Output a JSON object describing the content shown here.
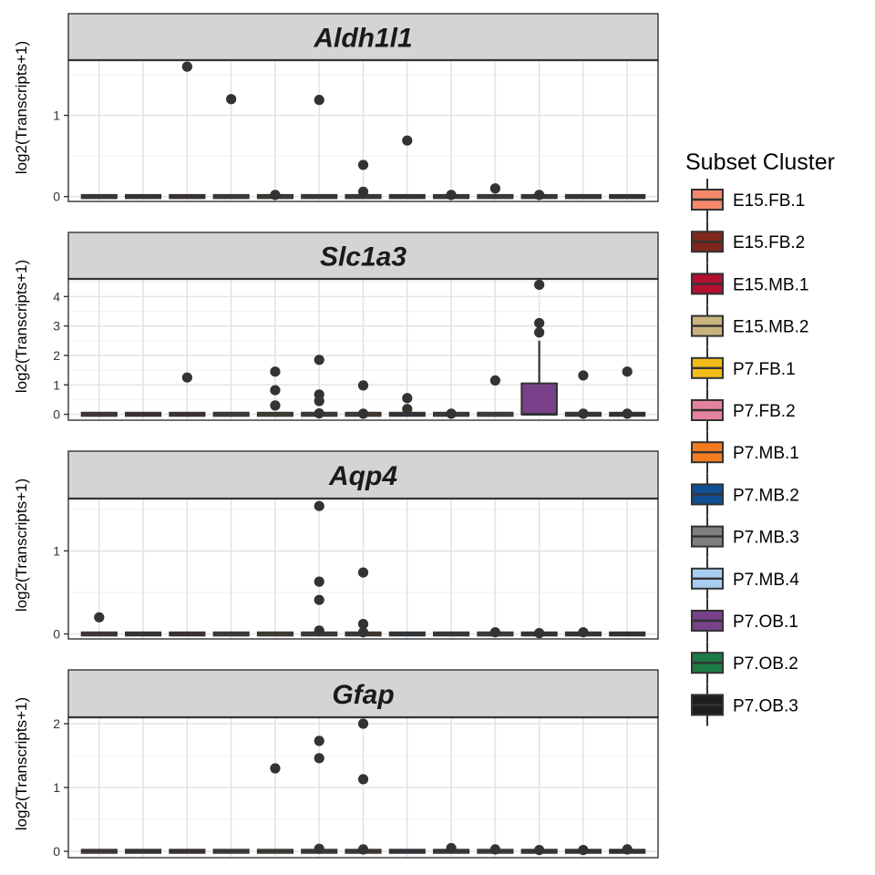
{
  "chart_data": {
    "type": "box",
    "ylabel": "log2(Transcripts+1)",
    "legend": {
      "title": "Subset Cluster",
      "placement": "right",
      "entries": [
        {
          "name": "E15.FB.1",
          "color": "#F4896B"
        },
        {
          "name": "E15.FB.2",
          "color": "#7F271C"
        },
        {
          "name": "E15.MB.1",
          "color": "#B40F32"
        },
        {
          "name": "E15.MB.2",
          "color": "#C9B37F"
        },
        {
          "name": "P7.FB.1",
          "color": "#F2BC1B"
        },
        {
          "name": "P7.FB.2",
          "color": "#E4839E"
        },
        {
          "name": "P7.MB.1",
          "color": "#F47B20"
        },
        {
          "name": "P7.MB.2",
          "color": "#0E4F96"
        },
        {
          "name": "P7.MB.3",
          "color": "#7E7E7E"
        },
        {
          "name": "P7.MB.4",
          "color": "#A9CDF0"
        },
        {
          "name": "P7.OB.1",
          "color": "#79418A"
        },
        {
          "name": "P7.OB.2",
          "color": "#1C7A45"
        },
        {
          "name": "P7.OB.3",
          "color": "#1E1E1E"
        }
      ]
    },
    "grid": true,
    "panels": [
      {
        "gene": "Aldh1l1",
        "ylim": [
          -0.06,
          1.68
        ],
        "yticks": [
          0,
          1
        ],
        "boxes": [
          {
            "cluster": "E15.FB.1",
            "q1": 0,
            "median": 0,
            "q3": 0,
            "outliers": []
          },
          {
            "cluster": "E15.FB.2",
            "q1": 0,
            "median": 0,
            "q3": 0,
            "outliers": []
          },
          {
            "cluster": "E15.MB.1",
            "q1": 0,
            "median": 0,
            "q3": 0,
            "outliers": [
              1.6
            ]
          },
          {
            "cluster": "E15.MB.2",
            "q1": 0,
            "median": 0,
            "q3": 0,
            "outliers": [
              1.2
            ]
          },
          {
            "cluster": "P7.FB.1",
            "q1": 0,
            "median": 0,
            "q3": 0,
            "outliers": [
              0.02
            ]
          },
          {
            "cluster": "P7.FB.2",
            "q1": 0,
            "median": 0,
            "q3": 0,
            "outliers": [
              1.19
            ]
          },
          {
            "cluster": "P7.MB.1",
            "q1": 0,
            "median": 0,
            "q3": 0,
            "outliers": [
              0.39,
              0.06
            ]
          },
          {
            "cluster": "P7.MB.2",
            "q1": 0,
            "median": 0,
            "q3": 0,
            "outliers": [
              0.69
            ]
          },
          {
            "cluster": "P7.MB.3",
            "q1": 0,
            "median": 0,
            "q3": 0,
            "outliers": [
              0.02
            ]
          },
          {
            "cluster": "P7.MB.4",
            "q1": 0,
            "median": 0,
            "q3": 0,
            "outliers": [
              0.1
            ]
          },
          {
            "cluster": "P7.OB.1",
            "q1": 0,
            "median": 0,
            "q3": 0,
            "outliers": [
              0.02
            ]
          },
          {
            "cluster": "P7.OB.2",
            "q1": 0,
            "median": 0,
            "q3": 0,
            "outliers": []
          },
          {
            "cluster": "P7.OB.3",
            "q1": 0,
            "median": 0,
            "q3": 0,
            "outliers": []
          }
        ]
      },
      {
        "gene": "Slc1a3",
        "ylim": [
          -0.2,
          4.6
        ],
        "yticks": [
          0,
          1,
          2,
          3,
          4
        ],
        "boxes": [
          {
            "cluster": "E15.FB.1",
            "q1": 0,
            "median": 0,
            "q3": 0,
            "outliers": []
          },
          {
            "cluster": "E15.FB.2",
            "q1": 0,
            "median": 0,
            "q3": 0,
            "outliers": []
          },
          {
            "cluster": "E15.MB.1",
            "q1": 0,
            "median": 0,
            "q3": 0,
            "outliers": [
              1.25
            ]
          },
          {
            "cluster": "E15.MB.2",
            "q1": 0,
            "median": 0,
            "q3": 0,
            "outliers": []
          },
          {
            "cluster": "P7.FB.1",
            "q1": 0,
            "median": 0,
            "q3": 0,
            "outliers": [
              1.45,
              0.82,
              0.3
            ]
          },
          {
            "cluster": "P7.FB.2",
            "q1": 0,
            "median": 0,
            "q3": 0,
            "outliers": [
              1.85,
              0.67,
              0.45,
              0.03
            ]
          },
          {
            "cluster": "P7.MB.1",
            "q1": 0,
            "median": 0,
            "q3": 0,
            "outliers": [
              0.98,
              0.02
            ]
          },
          {
            "cluster": "P7.MB.2",
            "q1": 0,
            "median": 0,
            "q3": 0,
            "outliers": [
              0.55,
              0.18
            ]
          },
          {
            "cluster": "P7.MB.3",
            "q1": 0,
            "median": 0,
            "q3": 0,
            "outliers": [
              0.02
            ]
          },
          {
            "cluster": "P7.MB.4",
            "q1": 0,
            "median": 0,
            "q3": 0,
            "outliers": [
              1.15
            ]
          },
          {
            "cluster": "P7.OB.1",
            "q1": 0,
            "median": 0,
            "q3": 1.05,
            "whisker_high": 2.5,
            "outliers": [
              4.4,
              3.1,
              2.78
            ]
          },
          {
            "cluster": "P7.OB.2",
            "q1": 0,
            "median": 0,
            "q3": 0,
            "outliers": [
              1.32,
              0.02
            ]
          },
          {
            "cluster": "P7.OB.3",
            "q1": 0,
            "median": 0,
            "q3": 0,
            "outliers": [
              1.45,
              0.02
            ]
          }
        ]
      },
      {
        "gene": "Aqp4",
        "ylim": [
          -0.06,
          1.63
        ],
        "yticks": [
          0,
          1
        ],
        "boxes": [
          {
            "cluster": "E15.FB.1",
            "q1": 0,
            "median": 0,
            "q3": 0,
            "outliers": [
              0.2
            ]
          },
          {
            "cluster": "E15.FB.2",
            "q1": 0,
            "median": 0,
            "q3": 0,
            "outliers": []
          },
          {
            "cluster": "E15.MB.1",
            "q1": 0,
            "median": 0,
            "q3": 0,
            "outliers": []
          },
          {
            "cluster": "E15.MB.2",
            "q1": 0,
            "median": 0,
            "q3": 0,
            "outliers": []
          },
          {
            "cluster": "P7.FB.1",
            "q1": 0,
            "median": 0,
            "q3": 0,
            "outliers": []
          },
          {
            "cluster": "P7.FB.2",
            "q1": 0,
            "median": 0,
            "q3": 0,
            "outliers": [
              1.54,
              0.63,
              0.41,
              0.04
            ]
          },
          {
            "cluster": "P7.MB.1",
            "q1": 0,
            "median": 0,
            "q3": 0,
            "outliers": [
              0.74,
              0.12,
              0.02
            ]
          },
          {
            "cluster": "P7.MB.2",
            "q1": 0,
            "median": 0,
            "q3": 0,
            "outliers": []
          },
          {
            "cluster": "P7.MB.3",
            "q1": 0,
            "median": 0,
            "q3": 0,
            "outliers": []
          },
          {
            "cluster": "P7.MB.4",
            "q1": 0,
            "median": 0,
            "q3": 0,
            "outliers": [
              0.02
            ]
          },
          {
            "cluster": "P7.OB.1",
            "q1": 0,
            "median": 0,
            "q3": 0,
            "outliers": [
              0.01
            ]
          },
          {
            "cluster": "P7.OB.2",
            "q1": 0,
            "median": 0,
            "q3": 0,
            "outliers": [
              0.02
            ]
          },
          {
            "cluster": "P7.OB.3",
            "q1": 0,
            "median": 0,
            "q3": 0,
            "outliers": []
          }
        ]
      },
      {
        "gene": "Gfap",
        "ylim": [
          -0.1,
          2.1
        ],
        "yticks": [
          0,
          1,
          2
        ],
        "boxes": [
          {
            "cluster": "E15.FB.1",
            "q1": 0,
            "median": 0,
            "q3": 0,
            "outliers": []
          },
          {
            "cluster": "E15.FB.2",
            "q1": 0,
            "median": 0,
            "q3": 0,
            "outliers": []
          },
          {
            "cluster": "E15.MB.1",
            "q1": 0,
            "median": 0,
            "q3": 0,
            "outliers": []
          },
          {
            "cluster": "E15.MB.2",
            "q1": 0,
            "median": 0,
            "q3": 0,
            "outliers": []
          },
          {
            "cluster": "P7.FB.1",
            "q1": 0,
            "median": 0,
            "q3": 0,
            "outliers": [
              1.3
            ]
          },
          {
            "cluster": "P7.FB.2",
            "q1": 0,
            "median": 0,
            "q3": 0,
            "outliers": [
              1.73,
              1.46,
              0.04
            ]
          },
          {
            "cluster": "P7.MB.1",
            "q1": 0,
            "median": 0,
            "q3": 0,
            "outliers": [
              2.0,
              1.13,
              0.03
            ]
          },
          {
            "cluster": "P7.MB.2",
            "q1": 0,
            "median": 0,
            "q3": 0,
            "outliers": []
          },
          {
            "cluster": "P7.MB.3",
            "q1": 0,
            "median": 0,
            "q3": 0,
            "outliers": [
              0.05
            ]
          },
          {
            "cluster": "P7.MB.4",
            "q1": 0,
            "median": 0,
            "q3": 0,
            "outliers": [
              0.03
            ]
          },
          {
            "cluster": "P7.OB.1",
            "q1": 0,
            "median": 0,
            "q3": 0,
            "outliers": [
              0.02
            ]
          },
          {
            "cluster": "P7.OB.2",
            "q1": 0,
            "median": 0,
            "q3": 0,
            "outliers": [
              0.02
            ]
          },
          {
            "cluster": "P7.OB.3",
            "q1": 0,
            "median": 0,
            "q3": 0,
            "outliers": [
              0.03
            ]
          }
        ]
      }
    ]
  }
}
